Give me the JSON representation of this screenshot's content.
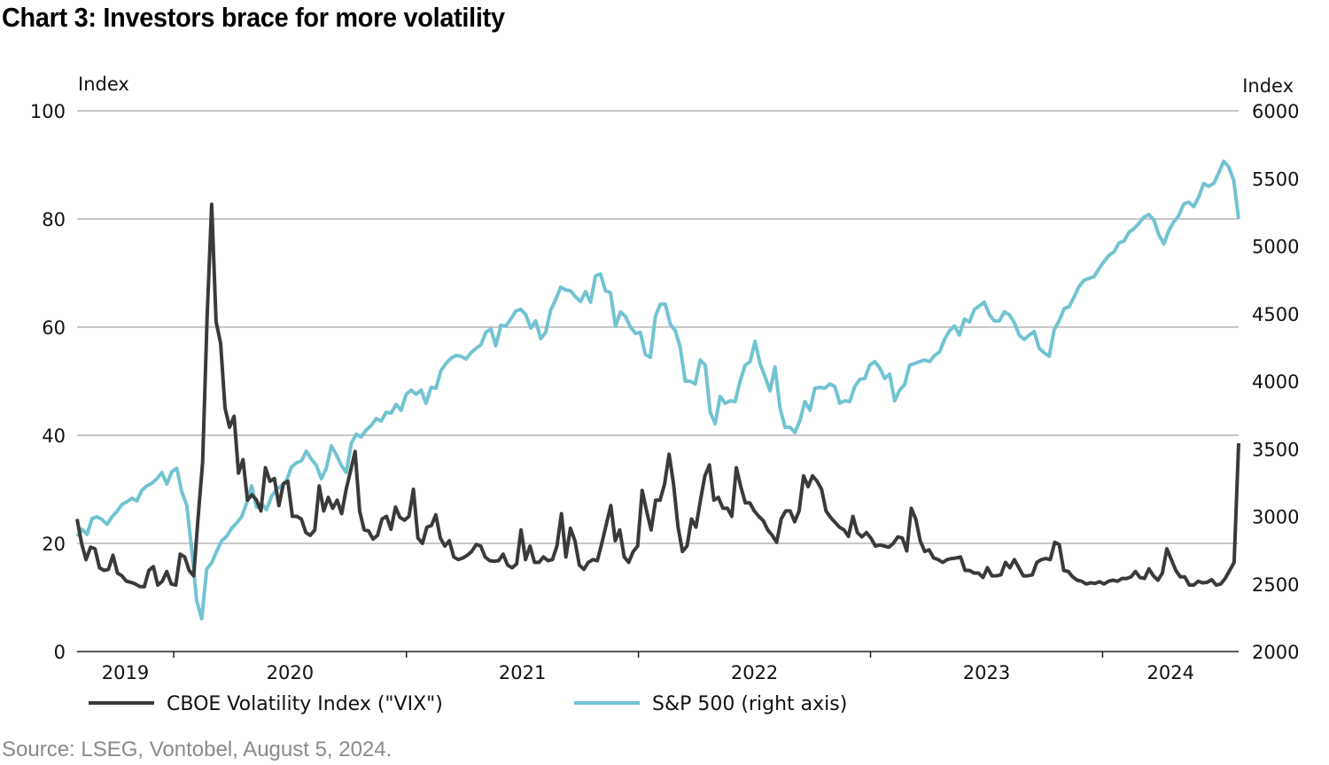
{
  "chart_data": {
    "type": "line",
    "title": "Chart 3: Investors brace for more volatility",
    "source": "Source: LSEG, Vontobel, August 5, 2024.",
    "xlim": [
      "2019-08-02",
      "2024-08-02"
    ],
    "x_tick_labels": [
      "2019",
      "2020",
      "2021",
      "2022",
      "2023",
      "2024"
    ],
    "y_left": {
      "label": "Index",
      "range": [
        0,
        100
      ],
      "ticks": [
        0,
        20,
        40,
        60,
        80,
        100
      ]
    },
    "y_right": {
      "label": "Index",
      "range": [
        2000,
        6000
      ],
      "ticks": [
        2000,
        2500,
        3000,
        3500,
        4000,
        4500,
        5000,
        5500,
        6000
      ]
    },
    "grid": true,
    "legend_placement": "bottom",
    "series": [
      {
        "name": "CBOE Volatility Index (\"VIX\")",
        "axis": "left",
        "color": "#3a3a3a",
        "values": [
          24.5,
          20,
          17,
          19.3,
          19,
          15.5,
          15,
          15.2,
          17.8,
          14.5,
          14,
          13,
          12.8,
          12.5,
          12,
          12,
          15,
          15.7,
          12.3,
          13,
          14.8,
          12.5,
          12.3,
          18,
          17.5,
          15,
          14,
          25,
          35,
          62,
          82.7,
          61,
          57,
          45,
          41.5,
          43.5,
          33,
          35.5,
          28,
          29,
          28,
          26,
          34,
          31.5,
          32,
          27,
          31,
          31.5,
          25,
          25,
          24.5,
          22,
          21.5,
          22.5,
          30.6,
          26,
          28.5,
          26.5,
          28,
          25.5,
          30,
          33.5,
          37,
          26,
          22.5,
          22.3,
          20.8,
          21.5,
          24.5,
          25,
          22.6,
          26.7,
          24.8,
          24.3,
          25,
          30,
          21,
          20,
          23,
          23.3,
          25.3,
          21,
          19.5,
          20.5,
          17.5,
          17,
          17.3,
          17.8,
          18.5,
          19.8,
          19.5,
          17.5,
          16.8,
          16.7,
          16.8,
          18,
          16,
          15.5,
          16.2,
          22.5,
          17,
          19.5,
          16.5,
          16.5,
          17.5,
          16.8,
          17,
          19.5,
          25.5,
          17.5,
          22.8,
          20.5,
          16,
          15.2,
          16.5,
          17,
          16.8,
          20,
          23.5,
          27,
          20.5,
          22.5,
          17.5,
          16.5,
          18.5,
          19.5,
          29.8,
          26,
          22.5,
          28,
          28,
          31,
          36.5,
          31,
          23,
          18.5,
          19.5,
          24.5,
          23,
          28,
          32.5,
          34.5,
          28,
          28.5,
          26.5,
          26.5,
          25,
          34,
          30.5,
          27.5,
          27.5,
          26,
          25,
          24.2,
          22.5,
          21.5,
          20.2,
          24.5,
          26,
          26,
          24,
          26,
          32.5,
          30.5,
          32.5,
          31.5,
          30,
          26,
          24.8,
          23.9,
          23,
          22.5,
          21.3,
          25,
          22,
          21.2,
          22,
          21,
          19.5,
          19.7,
          19.5,
          19.3,
          20,
          21.2,
          21,
          18.6,
          26.5,
          24.5,
          20.5,
          18.5,
          18.8,
          17.3,
          17,
          16.5,
          17,
          17.2,
          17.3,
          17.5,
          15,
          15,
          14.5,
          14.5,
          13.7,
          15.5,
          14,
          14,
          14.2,
          16.5,
          15.5,
          17,
          15.5,
          14,
          14,
          14.2,
          16.5,
          17,
          17.2,
          17,
          20.2,
          19.8,
          15,
          14.8,
          13.8,
          13.2,
          13,
          12.5,
          12.7,
          12.6,
          12.9,
          12.5,
          13,
          13.2,
          13,
          13.5,
          13.5,
          13.8,
          14.8,
          13.7,
          13.5,
          15.3,
          14,
          13.2,
          14.5,
          19,
          17,
          15,
          13.8,
          13.8,
          12.3,
          12.3,
          13,
          12.7,
          12.8,
          13.3,
          12.3,
          12.5,
          13.5,
          15,
          16.5,
          38.5
        ]
      },
      {
        "name": "S&P 500 (right axis)",
        "axis": "right",
        "color": "#72c3d2",
        "values": [
          2852,
          2905,
          2866,
          2984,
          2997,
          2977,
          2940,
          2997,
          3036,
          3088,
          3108,
          3134,
          3115,
          3193,
          3226,
          3245,
          3278,
          3324,
          3239,
          3330,
          3357,
          3180,
          3082,
          2754,
          2374,
          2243,
          2610,
          2656,
          2741,
          2820,
          2852,
          2911,
          2951,
          2997,
          3095,
          3226,
          3069,
          3095,
          3049,
          3148,
          3200,
          3226,
          3265,
          3364,
          3397,
          3410,
          3482,
          3423,
          3377,
          3278,
          3357,
          3521,
          3456,
          3377,
          3324,
          3541,
          3607,
          3587,
          3639,
          3672,
          3724,
          3705,
          3770,
          3764,
          3829,
          3784,
          3902,
          3934,
          3902,
          3934,
          3836,
          3954,
          3948,
          4079,
          4131,
          4170,
          4190,
          4184,
          4164,
          4210,
          4242,
          4269,
          4361,
          4387,
          4262,
          4413,
          4407,
          4459,
          4518,
          4531,
          4492,
          4393,
          4446,
          4315,
          4361,
          4525,
          4603,
          4695,
          4675,
          4669,
          4623,
          4590,
          4662,
          4584,
          4780,
          4793,
          4669,
          4656,
          4407,
          4512,
          4479,
          4400,
          4354,
          4361,
          4197,
          4177,
          4479,
          4570,
          4570,
          4420,
          4374,
          4249,
          4000,
          4000,
          3980,
          4157,
          4118,
          3770,
          3685,
          3888,
          3836,
          3855,
          3849,
          4000,
          4118,
          4144,
          4295,
          4131,
          4033,
          3928,
          4105,
          3803,
          3659,
          3659,
          3620,
          3711,
          3849,
          3784,
          3948,
          3954,
          3948,
          3980,
          3961,
          3836,
          3855,
          3849,
          3961,
          4013,
          4020,
          4118,
          4144,
          4098,
          4020,
          4052,
          3855,
          3934,
          3974,
          4118,
          4131,
          4144,
          4157,
          4144,
          4190,
          4216,
          4308,
          4374,
          4407,
          4341,
          4459,
          4439,
          4531,
          4557,
          4584,
          4492,
          4446,
          4446,
          4512,
          4492,
          4433,
          4341,
          4308,
          4341,
          4367,
          4243,
          4210,
          4184,
          4380,
          4446,
          4537,
          4551,
          4623,
          4701,
          4747,
          4760,
          4774,
          4833,
          4885,
          4931,
          4957,
          5023,
          5036,
          5101,
          5128,
          5167,
          5213,
          5233,
          5193,
          5082,
          5016,
          5115,
          5180,
          5226,
          5311,
          5324,
          5291,
          5364,
          5462,
          5442,
          5462,
          5541,
          5626,
          5587,
          5488,
          5200
        ]
      }
    ]
  }
}
